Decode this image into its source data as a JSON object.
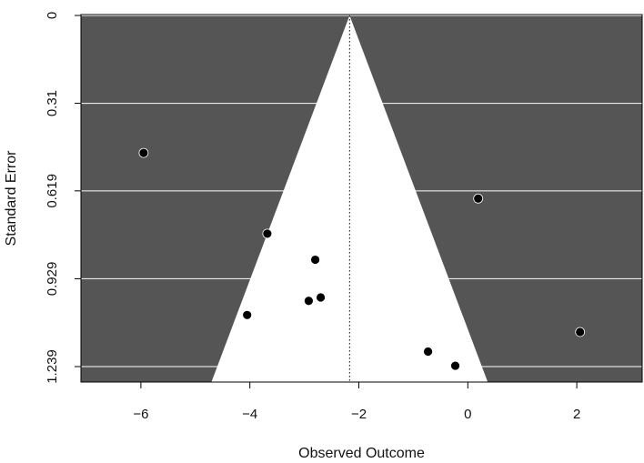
{
  "chart_data": {
    "type": "scatter",
    "subtype": "funnel plot",
    "title": "",
    "xlabel": "Observed Outcome",
    "ylabel": "Standard Error",
    "xlim": [
      -7.1,
      3.2
    ],
    "ylim": [
      0,
      1.239
    ],
    "y_axis_reversed": true,
    "x_ticks": [
      -6,
      -4,
      -2,
      0,
      2
    ],
    "x_tick_labels": [
      "−6",
      "−4",
      "−2",
      "0",
      "2"
    ],
    "y_ticks": [
      0,
      0.31,
      0.619,
      0.929,
      1.239
    ],
    "y_tick_labels": [
      "0",
      "0.31",
      "0.619",
      "0.929",
      "1.239"
    ],
    "center_estimate": -2.17,
    "funnel_z": 1.96,
    "grid": true,
    "colors": {
      "panel_background": "#555555",
      "funnel_fill": "#ffffff",
      "gridline": "#ffffff",
      "point": "#000000",
      "axis": "#000000"
    },
    "points": [
      {
        "x": -5.95,
        "y": 0.485
      },
      {
        "x": -3.68,
        "y": 0.77
      },
      {
        "x": -2.8,
        "y": 0.862
      },
      {
        "x": -2.7,
        "y": 0.995
      },
      {
        "x": -2.92,
        "y": 1.007
      },
      {
        "x": -4.05,
        "y": 1.057
      },
      {
        "x": 0.19,
        "y": 0.646
      },
      {
        "x": 2.06,
        "y": 1.117
      },
      {
        "x": -0.73,
        "y": 1.186
      },
      {
        "x": -0.23,
        "y": 1.236
      }
    ]
  }
}
